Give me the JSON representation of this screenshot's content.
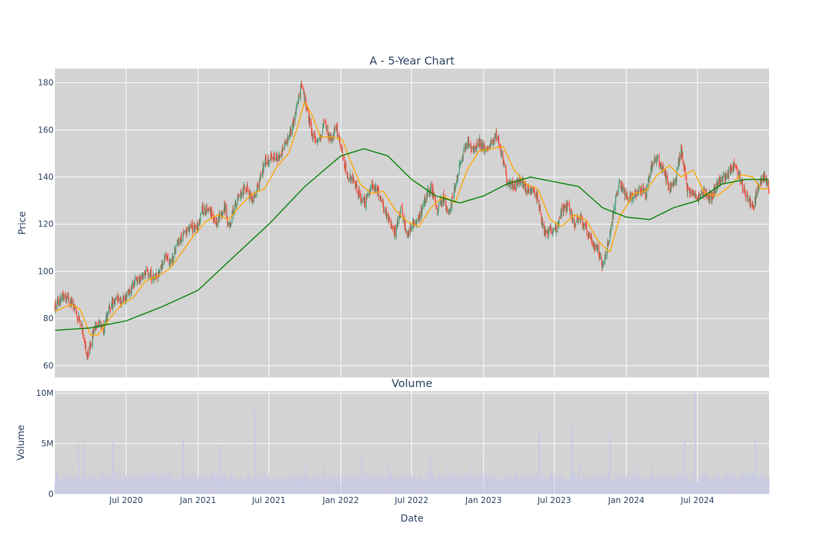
{
  "chart_data": [
    {
      "type": "candlestick",
      "title": "A - 5-Year Chart",
      "xlabel": "",
      "ylabel": "Price",
      "ylim": [
        55,
        186
      ],
      "yticks": [
        60,
        80,
        100,
        120,
        140,
        160,
        180
      ],
      "xlim": [
        "2020-01-01",
        "2024-12-31"
      ],
      "xtick_dates": [
        "2020-07-01",
        "2021-01-01",
        "2021-07-01",
        "2022-01-01",
        "2022-07-01",
        "2023-01-01",
        "2023-07-01",
        "2024-01-01",
        "2024-07-01"
      ],
      "colors": {
        "up": "#3d9970",
        "down": "#ff4136",
        "ma_short": "#ffa500",
        "ma_long": "#008000",
        "plot_bg": "#d3d3d3",
        "grid": "#ffffff"
      },
      "price_path": [
        [
          "2020-01-02",
          85
        ],
        [
          "2020-01-20",
          89
        ],
        [
          "2020-02-10",
          87
        ],
        [
          "2020-02-25",
          82
        ],
        [
          "2020-03-10",
          77
        ],
        [
          "2020-03-23",
          63
        ],
        [
          "2020-04-05",
          72
        ],
        [
          "2020-04-20",
          79
        ],
        [
          "2020-05-05",
          76
        ],
        [
          "2020-05-20",
          84
        ],
        [
          "2020-06-05",
          89
        ],
        [
          "2020-06-20",
          87
        ],
        [
          "2020-07-10",
          91
        ],
        [
          "2020-07-25",
          97
        ],
        [
          "2020-08-10",
          98
        ],
        [
          "2020-08-25",
          100
        ],
        [
          "2020-09-10",
          97
        ],
        [
          "2020-09-25",
          100
        ],
        [
          "2020-10-10",
          106
        ],
        [
          "2020-10-25",
          104
        ],
        [
          "2020-11-10",
          112
        ],
        [
          "2020-11-25",
          115
        ],
        [
          "2020-12-10",
          118
        ],
        [
          "2020-12-31",
          119
        ],
        [
          "2021-01-15",
          127
        ],
        [
          "2021-02-01",
          126
        ],
        [
          "2021-02-15",
          121
        ],
        [
          "2021-03-01",
          124
        ],
        [
          "2021-03-10",
          128
        ],
        [
          "2021-03-20",
          118
        ],
        [
          "2021-04-05",
          128
        ],
        [
          "2021-04-20",
          133
        ],
        [
          "2021-05-05",
          136
        ],
        [
          "2021-05-20",
          129
        ],
        [
          "2021-06-05",
          137
        ],
        [
          "2021-06-20",
          146
        ],
        [
          "2021-07-10",
          149
        ],
        [
          "2021-07-25",
          147
        ],
        [
          "2021-08-10",
          153
        ],
        [
          "2021-08-25",
          158
        ],
        [
          "2021-09-10",
          170
        ],
        [
          "2021-09-22",
          178
        ],
        [
          "2021-10-05",
          170
        ],
        [
          "2021-10-20",
          158
        ],
        [
          "2021-11-05",
          155
        ],
        [
          "2021-11-20",
          163
        ],
        [
          "2021-12-05",
          155
        ],
        [
          "2021-12-20",
          161
        ],
        [
          "2022-01-05",
          150
        ],
        [
          "2022-01-20",
          140
        ],
        [
          "2022-02-05",
          138
        ],
        [
          "2022-02-20",
          131
        ],
        [
          "2022-03-05",
          129
        ],
        [
          "2022-03-20",
          137
        ],
        [
          "2022-04-05",
          134
        ],
        [
          "2022-04-20",
          127
        ],
        [
          "2022-05-05",
          121
        ],
        [
          "2022-05-20",
          116
        ],
        [
          "2022-06-05",
          127
        ],
        [
          "2022-06-20",
          114
        ],
        [
          "2022-07-05",
          121
        ],
        [
          "2022-07-20",
          122
        ],
        [
          "2022-08-05",
          131
        ],
        [
          "2022-08-20",
          136
        ],
        [
          "2022-09-05",
          126
        ],
        [
          "2022-09-20",
          131
        ],
        [
          "2022-10-05",
          124
        ],
        [
          "2022-10-20",
          136
        ],
        [
          "2022-11-05",
          147
        ],
        [
          "2022-11-20",
          156
        ],
        [
          "2022-12-05",
          151
        ],
        [
          "2022-12-20",
          155
        ],
        [
          "2023-01-05",
          152
        ],
        [
          "2023-01-20",
          154
        ],
        [
          "2023-02-05",
          158
        ],
        [
          "2023-02-20",
          146
        ],
        [
          "2023-03-05",
          137
        ],
        [
          "2023-03-20",
          136
        ],
        [
          "2023-04-05",
          139
        ],
        [
          "2023-04-20",
          135
        ],
        [
          "2023-05-05",
          134
        ],
        [
          "2023-05-20",
          131
        ],
        [
          "2023-06-05",
          116
        ],
        [
          "2023-06-20",
          118
        ],
        [
          "2023-07-05",
          118
        ],
        [
          "2023-07-20",
          125
        ],
        [
          "2023-08-05",
          128
        ],
        [
          "2023-08-20",
          120
        ],
        [
          "2023-09-05",
          123
        ],
        [
          "2023-09-20",
          118
        ],
        [
          "2023-10-05",
          113
        ],
        [
          "2023-10-20",
          109
        ],
        [
          "2023-11-01",
          102
        ],
        [
          "2023-11-15",
          112
        ],
        [
          "2023-12-01",
          128
        ],
        [
          "2023-12-15",
          137
        ],
        [
          "2024-01-05",
          131
        ],
        [
          "2024-01-20",
          132
        ],
        [
          "2024-02-05",
          135
        ],
        [
          "2024-02-20",
          133
        ],
        [
          "2024-03-05",
          144
        ],
        [
          "2024-03-20",
          148
        ],
        [
          "2024-04-05",
          143
        ],
        [
          "2024-04-20",
          135
        ],
        [
          "2024-05-05",
          138
        ],
        [
          "2024-05-20",
          152
        ],
        [
          "2024-06-05",
          135
        ],
        [
          "2024-06-20",
          133
        ],
        [
          "2024-07-05",
          131
        ],
        [
          "2024-07-20",
          134
        ],
        [
          "2024-08-05",
          131
        ],
        [
          "2024-08-20",
          137
        ],
        [
          "2024-09-05",
          140
        ],
        [
          "2024-09-20",
          142
        ],
        [
          "2024-10-05",
          146
        ],
        [
          "2024-10-20",
          138
        ],
        [
          "2024-11-05",
          131
        ],
        [
          "2024-11-20",
          127
        ],
        [
          "2024-12-05",
          137
        ],
        [
          "2024-12-20",
          140
        ],
        [
          "2024-12-31",
          135
        ]
      ],
      "ma_short": [
        [
          "2020-01-02",
          83
        ],
        [
          "2020-02-10",
          86
        ],
        [
          "2020-03-05",
          84
        ],
        [
          "2020-04-01",
          73
        ],
        [
          "2020-04-20",
          73
        ],
        [
          "2020-05-20",
          80
        ],
        [
          "2020-06-20",
          86
        ],
        [
          "2020-07-20",
          89
        ],
        [
          "2020-08-20",
          96
        ],
        [
          "2020-09-20",
          98
        ],
        [
          "2020-10-20",
          101
        ],
        [
          "2020-11-20",
          108
        ],
        [
          "2020-12-20",
          115
        ],
        [
          "2021-01-20",
          121
        ],
        [
          "2021-02-20",
          124
        ],
        [
          "2021-03-20",
          122
        ],
        [
          "2021-04-20",
          128
        ],
        [
          "2021-05-20",
          133
        ],
        [
          "2021-06-20",
          135
        ],
        [
          "2021-07-20",
          144
        ],
        [
          "2021-08-20",
          150
        ],
        [
          "2021-09-10",
          160
        ],
        [
          "2021-09-30",
          172
        ],
        [
          "2021-10-20",
          166
        ],
        [
          "2021-11-10",
          157
        ],
        [
          "2021-12-10",
          157
        ],
        [
          "2022-01-05",
          156
        ],
        [
          "2022-01-25",
          147
        ],
        [
          "2022-02-20",
          137
        ],
        [
          "2022-03-20",
          133
        ],
        [
          "2022-04-20",
          134
        ],
        [
          "2022-05-20",
          126
        ],
        [
          "2022-06-20",
          121
        ],
        [
          "2022-07-20",
          119
        ],
        [
          "2022-08-20",
          127
        ],
        [
          "2022-09-20",
          132
        ],
        [
          "2022-10-20",
          129
        ],
        [
          "2022-11-20",
          143
        ],
        [
          "2022-12-20",
          151
        ],
        [
          "2023-01-20",
          152
        ],
        [
          "2023-02-20",
          153
        ],
        [
          "2023-03-20",
          143
        ],
        [
          "2023-04-20",
          137
        ],
        [
          "2023-05-20",
          135
        ],
        [
          "2023-06-20",
          122
        ],
        [
          "2023-07-20",
          119
        ],
        [
          "2023-08-20",
          124
        ],
        [
          "2023-09-20",
          122
        ],
        [
          "2023-10-20",
          113
        ],
        [
          "2023-11-20",
          108
        ],
        [
          "2023-12-15",
          123
        ],
        [
          "2024-01-20",
          133
        ],
        [
          "2024-02-20",
          134
        ],
        [
          "2024-03-20",
          141
        ],
        [
          "2024-04-20",
          145
        ],
        [
          "2024-05-20",
          140
        ],
        [
          "2024-06-20",
          143
        ],
        [
          "2024-07-20",
          133
        ],
        [
          "2024-08-20",
          132
        ],
        [
          "2024-09-20",
          136
        ],
        [
          "2024-10-20",
          141
        ],
        [
          "2024-11-20",
          140
        ],
        [
          "2024-12-10",
          135
        ],
        [
          "2024-12-31",
          135
        ]
      ],
      "ma_long": [
        [
          "2020-01-02",
          75
        ],
        [
          "2020-04-01",
          76
        ],
        [
          "2020-07-01",
          79
        ],
        [
          "2020-10-01",
          85
        ],
        [
          "2021-01-01",
          92
        ],
        [
          "2021-04-01",
          106
        ],
        [
          "2021-07-01",
          120
        ],
        [
          "2021-10-01",
          136
        ],
        [
          "2022-01-01",
          149
        ],
        [
          "2022-03-01",
          152
        ],
        [
          "2022-05-01",
          149
        ],
        [
          "2022-07-01",
          139
        ],
        [
          "2022-09-01",
          132
        ],
        [
          "2022-11-01",
          129
        ],
        [
          "2023-01-01",
          132
        ],
        [
          "2023-03-01",
          137
        ],
        [
          "2023-05-01",
          140
        ],
        [
          "2023-07-01",
          138
        ],
        [
          "2023-09-01",
          136
        ],
        [
          "2023-11-01",
          127
        ],
        [
          "2024-01-01",
          123
        ],
        [
          "2024-03-01",
          122
        ],
        [
          "2024-05-01",
          127
        ],
        [
          "2024-07-01",
          130
        ],
        [
          "2024-09-01",
          137
        ],
        [
          "2024-11-01",
          139
        ],
        [
          "2024-12-31",
          139
        ]
      ]
    },
    {
      "type": "bar",
      "title": "Volume",
      "xlabel": "Date",
      "ylabel": "Volume",
      "ylim": [
        0,
        10200000
      ],
      "yticks": [
        0,
        5000000,
        10000000
      ],
      "ytick_labels": [
        "0",
        "5M",
        "10M"
      ],
      "xtick_labels": [
        "Jul 2020",
        "Jan 2021",
        "Jul 2021",
        "Jan 2022",
        "Jul 2022",
        "Jan 2023",
        "Jul 2023",
        "Jan 2024",
        "Jul 2024"
      ],
      "colors": {
        "bar": "#c9c9e6",
        "plot_bg": "#d3d3d3",
        "grid": "#ffffff"
      },
      "volume_spikes": [
        [
          "2020-03-02",
          5000000
        ],
        [
          "2020-03-16",
          5100000
        ],
        [
          "2020-05-28",
          5100000
        ],
        [
          "2020-11-24",
          5500000
        ],
        [
          "2021-02-24",
          4800000
        ],
        [
          "2021-05-27",
          8200000
        ],
        [
          "2022-02-23",
          3900000
        ],
        [
          "2022-08-17",
          4100000
        ],
        [
          "2023-05-23",
          6500000
        ],
        [
          "2023-08-16",
          6600000
        ],
        [
          "2023-11-21",
          5900000
        ],
        [
          "2024-05-29",
          5300000
        ],
        [
          "2024-06-26",
          10000000
        ],
        [
          "2024-11-25",
          5300000
        ]
      ],
      "volume_baseline": 1900000
    }
  ]
}
